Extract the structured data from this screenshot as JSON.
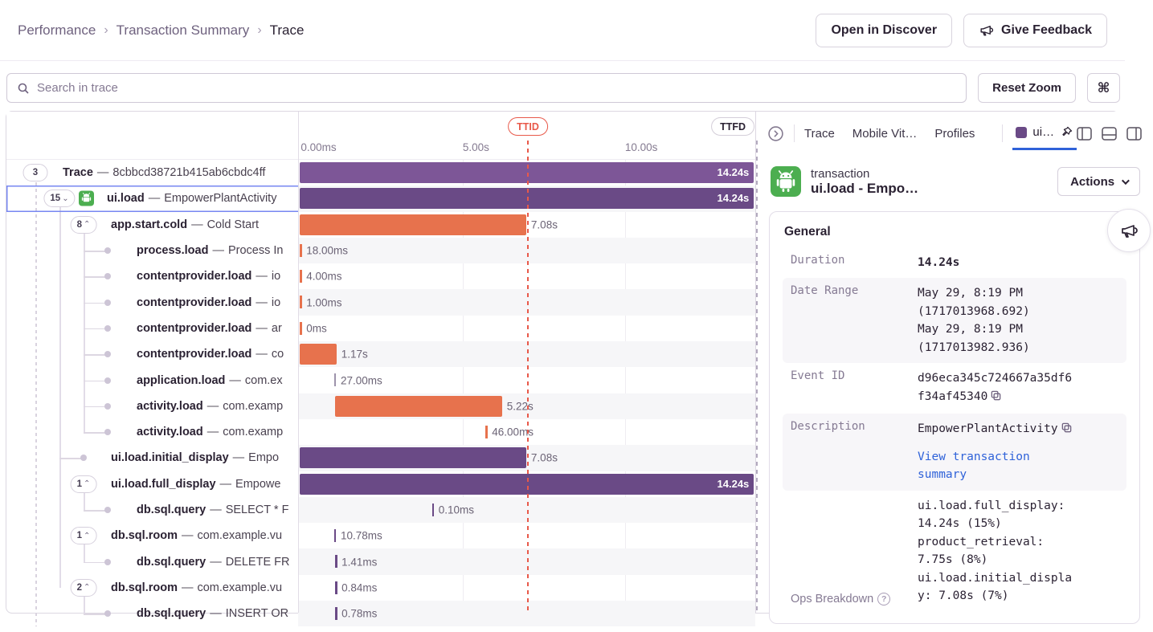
{
  "breadcrumb": {
    "items": [
      "Performance",
      "Transaction Summary",
      "Trace"
    ],
    "separator": "›"
  },
  "header": {
    "open_in_discover": "Open in Discover",
    "give_feedback": "Give Feedback"
  },
  "toolbar": {
    "search_placeholder": "Search in trace",
    "reset_zoom": "Reset Zoom",
    "shortcut_glyph": "⌘"
  },
  "dash_separator": "—",
  "timeline": {
    "ticks": [
      {
        "label": "0.00ms",
        "pos": 0.6
      },
      {
        "label": "5.00s",
        "pos": 36.0
      },
      {
        "label": "10.00s",
        "pos": 71.5
      }
    ],
    "ttid_label": "TTID",
    "ttfd_label": "TTFD"
  },
  "colors": {
    "span_purple": "#6a4a86",
    "span_purple_light": "#7d5697",
    "span_orange": "#e7724d",
    "tick_gray": "#9d93ab",
    "ttid_red": "#e8594a",
    "selected_blue": "#7787f2",
    "link_blue": "#2f62d9",
    "android_green": "#4cae50"
  },
  "trace_rows": [
    {
      "op": "Trace",
      "desc": "8cbbcd38721b415ab6cbdc4ff",
      "depth": 0,
      "pill": "3",
      "chevron": null,
      "icon": null,
      "selected": false,
      "bar": {
        "kind": "bar",
        "color": "purple_light",
        "left": 0.4,
        "width": 99.3,
        "label": "14.24s",
        "inside": true
      }
    },
    {
      "op": "ui.load",
      "desc": "EmpowerPlantActivity",
      "depth": 1,
      "pill": "15",
      "chevron": "down",
      "icon": "android",
      "selected": true,
      "bar": {
        "kind": "bar",
        "color": "purple",
        "left": 0.4,
        "width": 99.3,
        "label": "14.24s",
        "inside": true
      }
    },
    {
      "op": "app.start.cold",
      "desc": "Cold Start",
      "depth": 2,
      "pill": "8",
      "chevron": "up",
      "icon": null,
      "selected": false,
      "bar": {
        "kind": "bar",
        "color": "orange",
        "left": 0.4,
        "width": 49.5,
        "label": "7.08s",
        "inside": false
      }
    },
    {
      "op": "process.load",
      "desc": "Process In",
      "depth": 3,
      "pill": null,
      "chevron": null,
      "icon": null,
      "selected": false,
      "bar": {
        "kind": "tick",
        "color": "orange",
        "left": 0.4,
        "label": "18.00ms"
      }
    },
    {
      "op": "contentprovider.load",
      "desc": "io",
      "depth": 3,
      "pill": null,
      "chevron": null,
      "icon": null,
      "selected": false,
      "bar": {
        "kind": "tick",
        "color": "orange",
        "left": 0.4,
        "label": "4.00ms"
      }
    },
    {
      "op": "contentprovider.load",
      "desc": "io",
      "depth": 3,
      "pill": null,
      "chevron": null,
      "icon": null,
      "selected": false,
      "bar": {
        "kind": "tick",
        "color": "orange",
        "left": 0.4,
        "label": "1.00ms"
      }
    },
    {
      "op": "contentprovider.load",
      "desc": "ar",
      "depth": 3,
      "pill": null,
      "chevron": null,
      "icon": null,
      "selected": false,
      "bar": {
        "kind": "tick",
        "color": "orange",
        "left": 0.4,
        "label": "0ms"
      }
    },
    {
      "op": "contentprovider.load",
      "desc": "co",
      "depth": 3,
      "pill": null,
      "chevron": null,
      "icon": null,
      "selected": false,
      "bar": {
        "kind": "bar",
        "color": "orange",
        "left": 0.4,
        "width": 8.0,
        "label": "1.17s",
        "inside": false
      }
    },
    {
      "op": "application.load",
      "desc": "com.ex",
      "depth": 3,
      "pill": null,
      "chevron": null,
      "icon": null,
      "selected": false,
      "bar": {
        "kind": "tick",
        "color": "gray",
        "left": 7.9,
        "label": "27.00ms"
      }
    },
    {
      "op": "activity.load",
      "desc": "com.examp",
      "depth": 3,
      "pill": null,
      "chevron": null,
      "icon": null,
      "selected": false,
      "bar": {
        "kind": "bar",
        "color": "orange",
        "left": 8.0,
        "width": 36.6,
        "label": "5.22s",
        "inside": false
      }
    },
    {
      "op": "activity.load",
      "desc": "com.examp",
      "depth": 3,
      "pill": null,
      "chevron": null,
      "icon": null,
      "selected": false,
      "bar": {
        "kind": "tick",
        "color": "orange",
        "left": 41.0,
        "label": "46.00ms"
      }
    },
    {
      "op": "ui.load.initial_display",
      "desc": "Empo",
      "depth": 2,
      "pill": null,
      "chevron": null,
      "icon": null,
      "selected": false,
      "bar": {
        "kind": "bar",
        "color": "purple",
        "left": 0.4,
        "width": 49.5,
        "label": "7.08s",
        "inside": false
      }
    },
    {
      "op": "ui.load.full_display",
      "desc": "Empowe",
      "depth": 2,
      "pill": "1",
      "chevron": "up",
      "icon": null,
      "selected": false,
      "bar": {
        "kind": "bar",
        "color": "purple",
        "left": 0.4,
        "width": 99.3,
        "label": "14.24s",
        "inside": true
      }
    },
    {
      "op": "db.sql.query",
      "desc": "SELECT * F",
      "depth": 3,
      "pill": null,
      "chevron": null,
      "icon": null,
      "selected": false,
      "bar": {
        "kind": "tick",
        "color": "purple",
        "left": 29.3,
        "label": "0.10ms"
      }
    },
    {
      "op": "db.sql.room",
      "desc": "com.example.vu",
      "depth": 2,
      "pill": "1",
      "chevron": "up",
      "icon": null,
      "selected": false,
      "bar": {
        "kind": "tick",
        "color": "purple",
        "left": 7.9,
        "label": "10.78ms"
      }
    },
    {
      "op": "db.sql.query",
      "desc": "DELETE FR",
      "depth": 3,
      "pill": null,
      "chevron": null,
      "icon": null,
      "selected": false,
      "bar": {
        "kind": "tick",
        "color": "purple",
        "left": 8.1,
        "label": "1.41ms"
      }
    },
    {
      "op": "db.sql.room",
      "desc": "com.example.vu",
      "depth": 2,
      "pill": "2",
      "chevron": "up",
      "icon": null,
      "selected": false,
      "bar": {
        "kind": "tick",
        "color": "purple",
        "left": 8.1,
        "label": "0.84ms"
      }
    },
    {
      "op": "db.sql.query",
      "desc": "INSERT OR",
      "depth": 3,
      "pill": null,
      "chevron": null,
      "icon": null,
      "selected": false,
      "bar": {
        "kind": "tick",
        "color": "purple",
        "left": 8.1,
        "label": "0.78ms"
      }
    }
  ],
  "detail_panel": {
    "tabs": [
      "Trace",
      "Mobile Vit…",
      "Profiles"
    ],
    "active_tab": "ui…",
    "transaction": {
      "type_label": "transaction",
      "name": "ui.load - Empo…",
      "actions_label": "Actions"
    },
    "general": {
      "title": "General",
      "duration": {
        "label": "Duration",
        "value": "14.24s"
      },
      "date_range": {
        "label": "Date Range",
        "value": "May 29, 8:19 PM\n(1717013968.692)\nMay 29, 8:19 PM\n(1717013982.936)"
      },
      "event_id": {
        "label": "Event ID",
        "value": "d96eca345c724667a35df6\nf34af45340"
      },
      "description": {
        "label": "Description",
        "value": "EmpowerPlantActivity",
        "link": "View transaction\nsummary"
      },
      "ops_breakdown": {
        "label": "Ops Breakdown",
        "entries": [
          "ui.load.full_display:\n14.24s (15%)",
          "product_retrieval:\n7.75s (8%)",
          "ui.load.initial_displa\ny: 7.08s (7%)"
        ]
      }
    }
  }
}
